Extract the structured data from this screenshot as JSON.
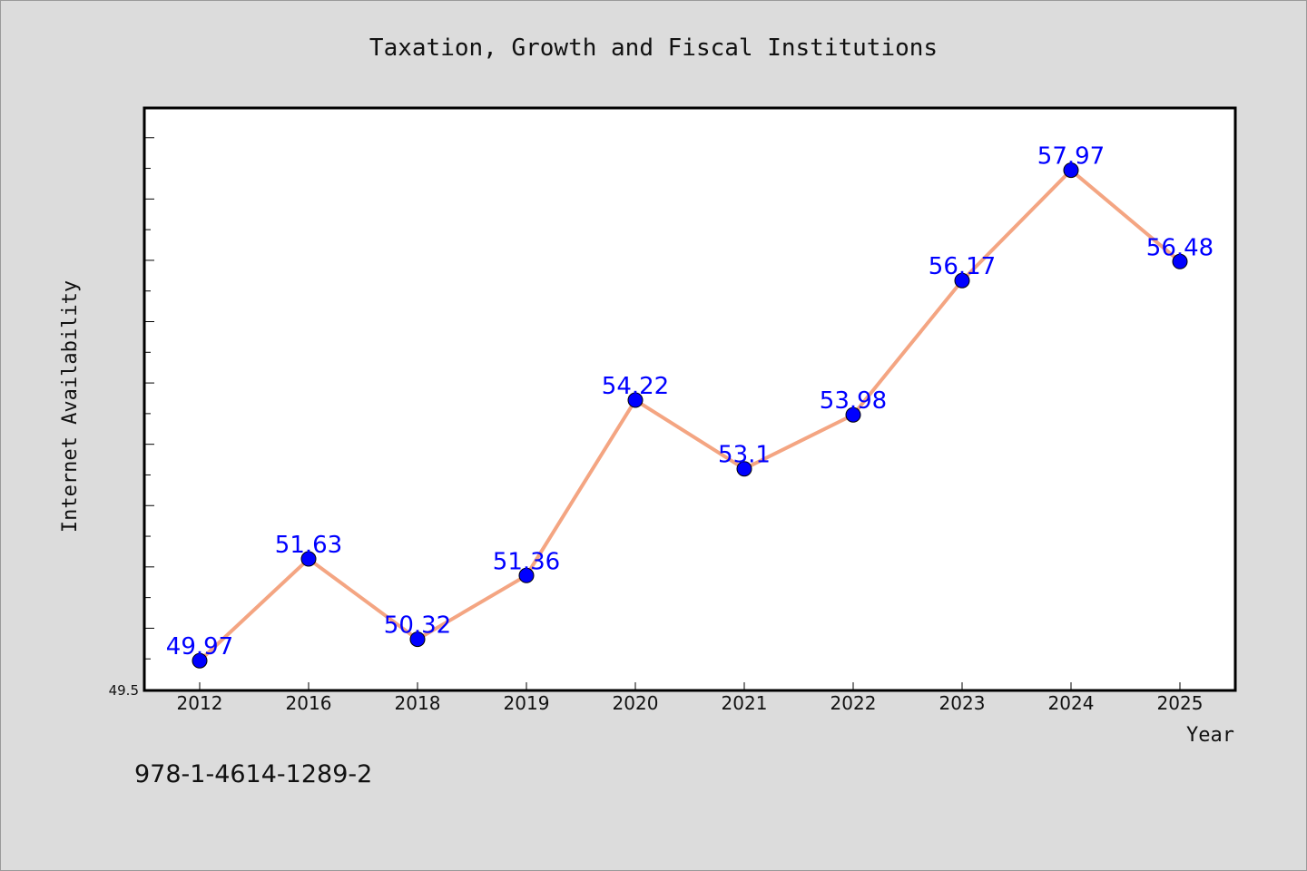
{
  "chart_data": {
    "type": "line",
    "title": "Taxation, Growth and Fiscal Institutions",
    "xlabel": "Year",
    "ylabel": "Internet Availability",
    "categories": [
      "2012",
      "2016",
      "2018",
      "2019",
      "2020",
      "2021",
      "2022",
      "2023",
      "2024",
      "2025"
    ],
    "series": [
      {
        "values": [
          49.97,
          51.63,
          50.32,
          51.36,
          54.22,
          53.1,
          53.98,
          56.17,
          57.97,
          56.48
        ],
        "labels": [
          "49.97",
          "51.63",
          "50.32",
          "51.36",
          "54.22",
          "53.1",
          "53.98",
          "56.17",
          "57.97",
          "56.48"
        ],
        "line_color": "#f4a582",
        "marker_color": "#0000ff"
      }
    ],
    "ylim": [
      49.5,
      58.97
    ],
    "ytick_labels": [
      "49.5"
    ],
    "grid": false,
    "legend": "none"
  },
  "footer": {
    "isbn": "978-1-4614-1289-2"
  }
}
